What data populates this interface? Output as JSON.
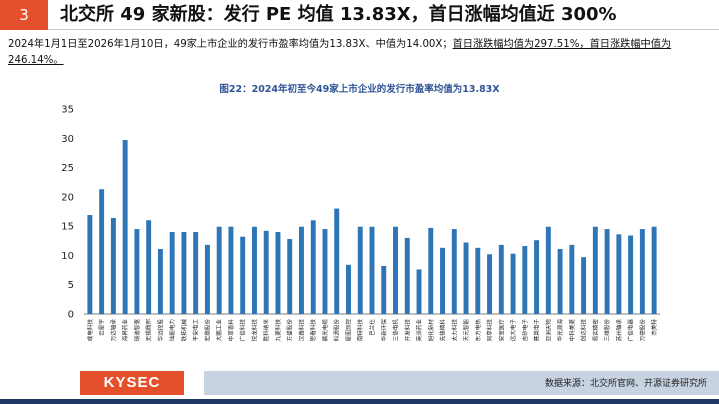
{
  "header": {
    "number": "3",
    "title": "北交所 49 家新股：发行 PE 均值 13.83X，首日涨幅均值近 300%"
  },
  "summary": {
    "part1": "2024年1月1日至2026年1月10日，49家上市企业的发行市盈率均值为13.83X、中值为14.00X；",
    "part2": "首日涨跌幅均值为297.51%，首日涨跌幅中值为246.14%。"
  },
  "chart_data": {
    "type": "bar",
    "title": "图22：2024年初至今49家上市企业的发行市盈率均值为13.83X",
    "ylim": [
      0,
      35
    ],
    "yticks": [
      0,
      5,
      10,
      15,
      20,
      25,
      30,
      35
    ],
    "grid": false,
    "color": "#2e75b6",
    "categories": [
      "成电科技",
      "云星宇",
      "万达轴承",
      "海昇药业",
      "瑞迪智驱",
      "无锡鼎邦",
      "华远控股",
      "灿能电力",
      "铁拓机械",
      "平安电工",
      "宏鼎股份",
      "大鹏工业",
      "中草香料",
      "广信科技",
      "悦龙科技",
      "胜科纳米",
      "九菱科技",
      "方盛股份",
      "汉鑫科技",
      "思看科技",
      "晨光电缆",
      "科源股份",
      "星图测控",
      "南特科技",
      "巴兰仕",
      "华新环保",
      "三协电机",
      "开发科技",
      "英派药业",
      "旭化新材",
      "先锋精科",
      "太力科技",
      "天元智能",
      "东方电热",
      "同享科技",
      "安宝医疗",
      "远大电子",
      "吉矽电子",
      "赛英电子",
      "亚洲天物",
      "华光源海",
      "中科美菱",
      "创达科技",
      "易实精密",
      "三维股份",
      "苏州轴承",
      "广信电器",
      "万德股份",
      "杰美特"
    ],
    "values": [
      16.9,
      21.3,
      16.4,
      29.7,
      14.5,
      16.0,
      11.1,
      14.0,
      14.0,
      14.0,
      11.8,
      14.9,
      14.9,
      13.2,
      14.9,
      14.2,
      14.0,
      12.8,
      14.9,
      16.0,
      14.5,
      18.0,
      8.4,
      14.9,
      14.9,
      8.2,
      14.9,
      13.0,
      7.6,
      14.7,
      11.3,
      14.5,
      12.2,
      11.3,
      10.2,
      11.8,
      10.3,
      11.6,
      12.6,
      14.9,
      11.1,
      11.8,
      9.7,
      14.9,
      14.5,
      13.6,
      13.4,
      14.5,
      14.9
    ]
  },
  "footer": {
    "logo": "KYSEC",
    "source": "数据来源：北交所官网、开源证券研究所"
  }
}
